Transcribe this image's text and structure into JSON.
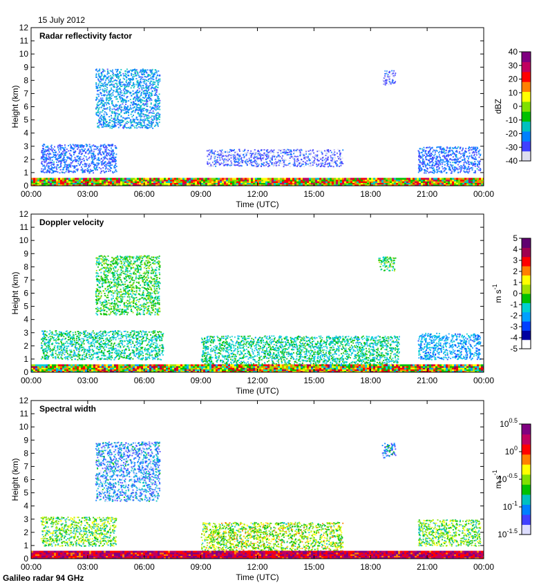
{
  "figure": {
    "date": "15 July 2012",
    "footer": "Galileo radar 94 GHz"
  },
  "chart_data": [
    {
      "type": "heatmap",
      "title": "Radar reflectivity factor",
      "xlabel": "Time (UTC)",
      "ylabel": "Height (km)",
      "x_ticks": [
        "00:00",
        "03:00",
        "06:00",
        "09:00",
        "12:00",
        "15:00",
        "18:00",
        "21:00",
        "00:00"
      ],
      "xlim_hours": [
        0,
        24
      ],
      "ylim": [
        0,
        12
      ],
      "y_ticks": [
        0,
        1,
        2,
        3,
        4,
        5,
        6,
        7,
        8,
        9,
        10,
        11,
        12
      ],
      "colorbar": {
        "label": "dBZ",
        "ticks": [
          "40",
          "30",
          "20",
          "10",
          "0",
          "-10",
          "-20",
          "-30",
          "-40"
        ],
        "range": [
          -40,
          40
        ]
      },
      "colormap": [
        "#ddddee",
        "#4040ff",
        "#0080ff",
        "#00c0c0",
        "#00c000",
        "#80e000",
        "#ffff00",
        "#ff8000",
        "#ff0000",
        "#c00060",
        "#800080"
      ],
      "features": [
        {
          "t0": 3.4,
          "t1": 6.8,
          "h0": 4.4,
          "h1": 8.9,
          "value": -20
        },
        {
          "t0": 0.5,
          "t1": 4.5,
          "h0": 1.0,
          "h1": 3.2,
          "value": -25
        },
        {
          "t0": 9.3,
          "t1": 16.5,
          "h0": 1.5,
          "h1": 2.8,
          "value": -30
        },
        {
          "t0": 20.5,
          "t1": 23.8,
          "h0": 1.0,
          "h1": 3.0,
          "value": -25
        },
        {
          "t0": 18.6,
          "t1": 19.3,
          "h0": 7.7,
          "h1": 8.8,
          "value": -30
        }
      ]
    },
    {
      "type": "heatmap",
      "title": "Doppler velocity",
      "xlabel": "Time (UTC)",
      "ylabel": "Height (km)",
      "x_ticks": [
        "00:00",
        "03:00",
        "06:00",
        "09:00",
        "12:00",
        "15:00",
        "18:00",
        "21:00",
        "00:00"
      ],
      "xlim_hours": [
        0,
        24
      ],
      "ylim": [
        0,
        12
      ],
      "y_ticks": [
        0,
        1,
        2,
        3,
        4,
        5,
        6,
        7,
        8,
        9,
        10,
        11,
        12
      ],
      "colorbar": {
        "label": "m s",
        "label_sup": "-1",
        "ticks": [
          "5",
          "4",
          "3",
          "2",
          "1",
          "0",
          "-1",
          "-2",
          "-3",
          "-4",
          "-5"
        ],
        "range": [
          -5,
          5
        ]
      },
      "colormap": [
        "#ffffff",
        "#0000a0",
        "#0040ff",
        "#00a0ff",
        "#00d0d0",
        "#00c000",
        "#a0e000",
        "#ffff00",
        "#ff8000",
        "#ff0000",
        "#a00050",
        "#600070"
      ],
      "features": [
        {
          "t0": 3.4,
          "t1": 6.8,
          "h0": 4.4,
          "h1": 8.9,
          "value": -0.5
        },
        {
          "t0": 0.5,
          "t1": 7.0,
          "h0": 1.0,
          "h1": 3.2,
          "value": -1
        },
        {
          "t0": 9.0,
          "t1": 19.5,
          "h0": 0.5,
          "h1": 2.8,
          "value": -1
        },
        {
          "t0": 20.5,
          "t1": 23.8,
          "h0": 1.0,
          "h1": 3.0,
          "value": -2
        },
        {
          "t0": 18.4,
          "t1": 19.3,
          "h0": 7.7,
          "h1": 8.8,
          "value": -0.5
        }
      ]
    },
    {
      "type": "heatmap",
      "title": "Spectral width",
      "xlabel": "Time (UTC)",
      "ylabel": "Height (km)",
      "x_ticks": [
        "00:00",
        "03:00",
        "06:00",
        "09:00",
        "12:00",
        "15:00",
        "18:00",
        "21:00",
        "00:00"
      ],
      "xlim_hours": [
        0,
        24
      ],
      "ylim": [
        0,
        12
      ],
      "y_ticks": [
        0,
        1,
        2,
        3,
        4,
        5,
        6,
        7,
        8,
        9,
        10,
        11,
        12
      ],
      "colorbar": {
        "label": "m s",
        "label_sup": "-1",
        "ticks": [
          "10^0.5",
          "10^0",
          "10^-0.5",
          "10^-1",
          "10^-1.5"
        ],
        "range_log10": [
          -1.5,
          0.5
        ]
      },
      "colormap": [
        "#ddddff",
        "#4040ff",
        "#0080ff",
        "#00c0c0",
        "#00c000",
        "#80e000",
        "#ffff00",
        "#ff8000",
        "#ff0000",
        "#c00060",
        "#800080"
      ],
      "features": [
        {
          "t0": 3.4,
          "t1": 6.8,
          "h0": 4.4,
          "h1": 8.9,
          "value": -1.1
        },
        {
          "t0": 0.5,
          "t1": 4.5,
          "h0": 1.0,
          "h1": 3.2,
          "value": -0.6
        },
        {
          "t0": 9.0,
          "t1": 16.5,
          "h0": 0.5,
          "h1": 2.8,
          "value": -0.5
        },
        {
          "t0": 20.5,
          "t1": 23.8,
          "h0": 1.0,
          "h1": 3.0,
          "value": -0.6
        },
        {
          "t0": 18.6,
          "t1": 19.3,
          "h0": 7.7,
          "h1": 8.8,
          "value": -1.0
        }
      ]
    }
  ]
}
